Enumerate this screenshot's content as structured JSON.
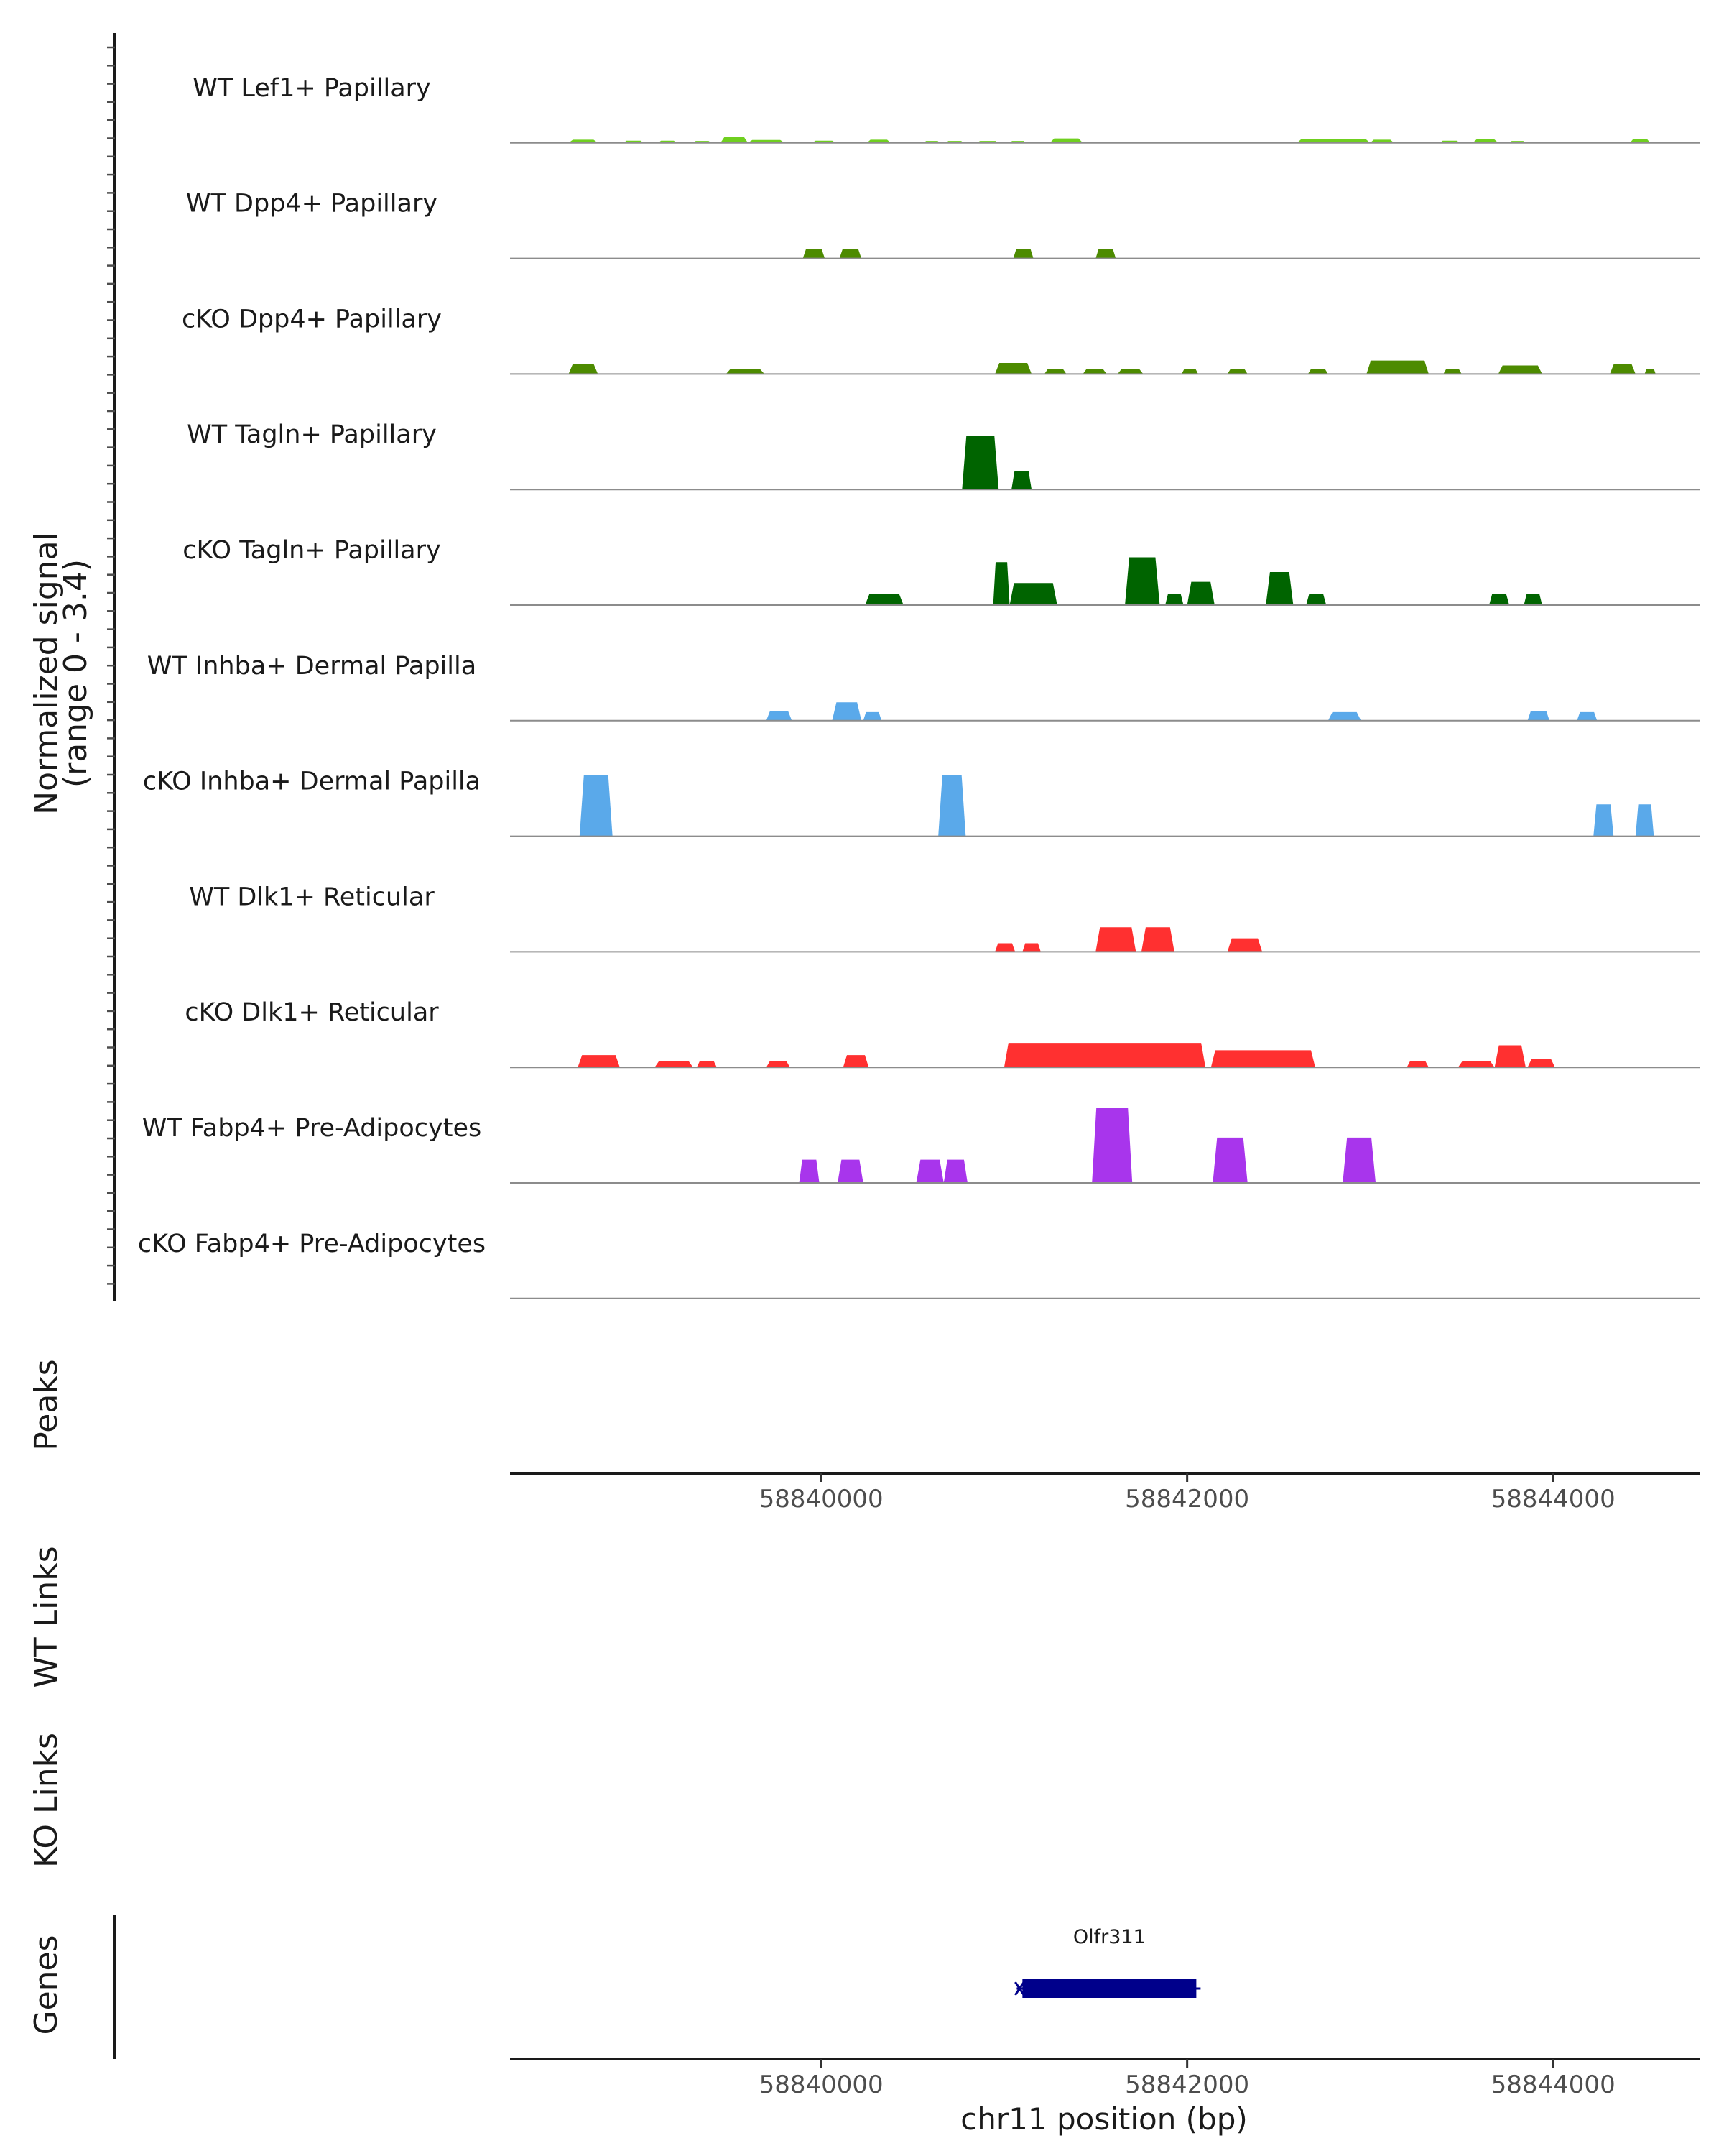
{
  "chart_data": {
    "type": "area",
    "chromosome": "chr11",
    "xlim": [
      58838300,
      58844800
    ],
    "xticks": [
      58840000,
      58842000,
      58844000
    ],
    "xtick_labels": [
      "58840000",
      "58842000",
      "58844000"
    ],
    "xlabel": "chr11 position (bp)",
    "ylabel_line1": "Normalized signal",
    "ylabel_line2": "(range 0 - 3.4)",
    "ylim": [
      0,
      3.4
    ],
    "tracks": [
      {
        "label": "WT Lef1+ Papillary",
        "color": "#6fcf1f",
        "segments": [
          {
            "s": 58838620,
            "e": 58838780,
            "peak": 0.13
          },
          {
            "s": 58838920,
            "e": 58839030,
            "peak": 0.09
          },
          {
            "s": 58839110,
            "e": 58839210,
            "peak": 0.09
          },
          {
            "s": 58839300,
            "e": 58839400,
            "peak": 0.08
          },
          {
            "s": 58839450,
            "e": 58839600,
            "peak": 0.25
          },
          {
            "s": 58839600,
            "e": 58839800,
            "peak": 0.12
          },
          {
            "s": 58839950,
            "e": 58840080,
            "peak": 0.09
          },
          {
            "s": 58840250,
            "e": 58840380,
            "peak": 0.13
          },
          {
            "s": 58840560,
            "e": 58840650,
            "peak": 0.08
          },
          {
            "s": 58840680,
            "e": 58840780,
            "peak": 0.08
          },
          {
            "s": 58840850,
            "e": 58840970,
            "peak": 0.08
          },
          {
            "s": 58841030,
            "e": 58841120,
            "peak": 0.08
          },
          {
            "s": 58841250,
            "e": 58841430,
            "peak": 0.18
          },
          {
            "s": 58842600,
            "e": 58843000,
            "peak": 0.15
          },
          {
            "s": 58843000,
            "e": 58843130,
            "peak": 0.13
          },
          {
            "s": 58843380,
            "e": 58843490,
            "peak": 0.09
          },
          {
            "s": 58843560,
            "e": 58843700,
            "peak": 0.14
          },
          {
            "s": 58843760,
            "e": 58843850,
            "peak": 0.08
          },
          {
            "s": 58844420,
            "e": 58844530,
            "peak": 0.15
          }
        ]
      },
      {
        "label": "WT Dpp4+ Papillary",
        "color": "#4d8b00",
        "segments": [
          {
            "s": 58839900,
            "e": 58840020,
            "peak": 0.4
          },
          {
            "s": 58840100,
            "e": 58840220,
            "peak": 0.4
          },
          {
            "s": 58841050,
            "e": 58841160,
            "peak": 0.4
          },
          {
            "s": 58841500,
            "e": 58841610,
            "peak": 0.4
          }
        ]
      },
      {
        "label": "cKO Dpp4+ Papillary",
        "color": "#4d8b00",
        "segments": [
          {
            "s": 58838620,
            "e": 58838780,
            "peak": 0.42
          },
          {
            "s": 58839480,
            "e": 58839690,
            "peak": 0.2
          },
          {
            "s": 58840950,
            "e": 58841150,
            "peak": 0.45
          },
          {
            "s": 58841220,
            "e": 58841340,
            "peak": 0.2
          },
          {
            "s": 58841430,
            "e": 58841560,
            "peak": 0.2
          },
          {
            "s": 58841620,
            "e": 58841760,
            "peak": 0.2
          },
          {
            "s": 58841970,
            "e": 58842060,
            "peak": 0.2
          },
          {
            "s": 58842220,
            "e": 58842330,
            "peak": 0.2
          },
          {
            "s": 58842660,
            "e": 58842770,
            "peak": 0.2
          },
          {
            "s": 58842980,
            "e": 58843320,
            "peak": 0.55
          },
          {
            "s": 58843400,
            "e": 58843500,
            "peak": 0.2
          },
          {
            "s": 58843700,
            "e": 58843940,
            "peak": 0.35
          },
          {
            "s": 58844310,
            "e": 58844450,
            "peak": 0.4
          },
          {
            "s": 58844500,
            "e": 58844560,
            "peak": 0.2
          }
        ]
      },
      {
        "label": "WT Tagln+ Papillary",
        "color": "#006400",
        "segments": [
          {
            "s": 58840770,
            "e": 58840970,
            "peak": 2.2
          },
          {
            "s": 58841040,
            "e": 58841150,
            "peak": 0.75
          }
        ]
      },
      {
        "label": "cKO Tagln+ Papillary",
        "color": "#006400",
        "segments": [
          {
            "s": 58840240,
            "e": 58840450,
            "peak": 0.45
          },
          {
            "s": 58840940,
            "e": 58841030,
            "peak": 1.75
          },
          {
            "s": 58841030,
            "e": 58841290,
            "peak": 0.9
          },
          {
            "s": 58841660,
            "e": 58841850,
            "peak": 1.95
          },
          {
            "s": 58841880,
            "e": 58841980,
            "peak": 0.45
          },
          {
            "s": 58842000,
            "e": 58842150,
            "peak": 0.95
          },
          {
            "s": 58842430,
            "e": 58842580,
            "peak": 1.35
          },
          {
            "s": 58842650,
            "e": 58842760,
            "peak": 0.45
          },
          {
            "s": 58843650,
            "e": 58843760,
            "peak": 0.45
          },
          {
            "s": 58843840,
            "e": 58843940,
            "peak": 0.45
          }
        ]
      },
      {
        "label": "WT Inhba+ Dermal Papilla",
        "color": "#5aa9ea",
        "segments": [
          {
            "s": 58839700,
            "e": 58839840,
            "peak": 0.4
          },
          {
            "s": 58840060,
            "e": 58840220,
            "peak": 0.75
          },
          {
            "s": 58840230,
            "e": 58840330,
            "peak": 0.35
          },
          {
            "s": 58842770,
            "e": 58842950,
            "peak": 0.35
          },
          {
            "s": 58843860,
            "e": 58843980,
            "peak": 0.4
          },
          {
            "s": 58844130,
            "e": 58844240,
            "peak": 0.35
          }
        ]
      },
      {
        "label": "cKO Inhba+ Dermal Papilla",
        "color": "#5aa9ea",
        "segments": [
          {
            "s": 58838680,
            "e": 58838860,
            "peak": 2.5
          },
          {
            "s": 58840640,
            "e": 58840790,
            "peak": 2.5
          },
          {
            "s": 58844220,
            "e": 58844330,
            "peak": 1.3
          },
          {
            "s": 58844450,
            "e": 58844550,
            "peak": 1.3
          }
        ]
      },
      {
        "label": "WT Dlk1+ Reticular",
        "color": "#ff3030",
        "segments": [
          {
            "s": 58840950,
            "e": 58841060,
            "peak": 0.35
          },
          {
            "s": 58841100,
            "e": 58841200,
            "peak": 0.35
          },
          {
            "s": 58841500,
            "e": 58841720,
            "peak": 1.0
          },
          {
            "s": 58841750,
            "e": 58841930,
            "peak": 1.0
          },
          {
            "s": 58842220,
            "e": 58842410,
            "peak": 0.55
          }
        ]
      },
      {
        "label": "cKO Dlk1+ Reticular",
        "color": "#ff3030",
        "segments": [
          {
            "s": 58838670,
            "e": 58838900,
            "peak": 0.5
          },
          {
            "s": 58839090,
            "e": 58839300,
            "peak": 0.25
          },
          {
            "s": 58839320,
            "e": 58839430,
            "peak": 0.25
          },
          {
            "s": 58839700,
            "e": 58839830,
            "peak": 0.25
          },
          {
            "s": 58840120,
            "e": 58840260,
            "peak": 0.5
          },
          {
            "s": 58841000,
            "e": 58842100,
            "peak": 1.0
          },
          {
            "s": 58842130,
            "e": 58842700,
            "peak": 0.7
          },
          {
            "s": 58843200,
            "e": 58843320,
            "peak": 0.25
          },
          {
            "s": 58843480,
            "e": 58843680,
            "peak": 0.25
          },
          {
            "s": 58843680,
            "e": 58843850,
            "peak": 0.9
          },
          {
            "s": 58843860,
            "e": 58844010,
            "peak": 0.35
          }
        ]
      },
      {
        "label": "WT Fabp4+ Pre-Adipocytes",
        "color": "#a835ec",
        "segments": [
          {
            "s": 58839880,
            "e": 58839990,
            "peak": 0.95
          },
          {
            "s": 58840090,
            "e": 58840230,
            "peak": 0.95
          },
          {
            "s": 58840520,
            "e": 58840670,
            "peak": 0.95
          },
          {
            "s": 58840670,
            "e": 58840800,
            "peak": 0.95
          },
          {
            "s": 58841480,
            "e": 58841700,
            "peak": 3.05
          },
          {
            "s": 58842140,
            "e": 58842330,
            "peak": 1.85
          },
          {
            "s": 58842850,
            "e": 58843030,
            "peak": 1.85
          }
        ]
      },
      {
        "label": "cKO Fabp4+ Pre-Adipocytes",
        "color": "#a835ec",
        "segments": []
      }
    ],
    "panel_labels": [
      "Peaks",
      "WT Links",
      "KO Links",
      "Genes"
    ],
    "genes": [
      {
        "name": "Olfr311",
        "start": 58841100,
        "end": 58842050,
        "color": "#00008b",
        "strand": "+"
      }
    ]
  }
}
